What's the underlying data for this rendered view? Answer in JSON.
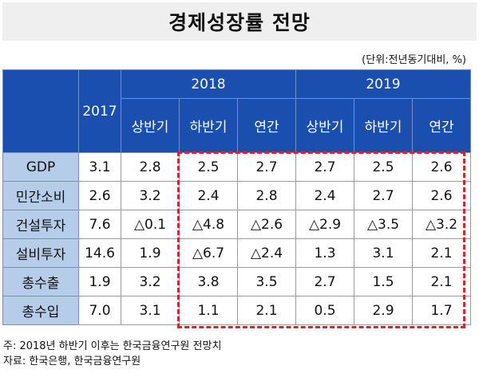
{
  "title": "경제성장률 전망",
  "unit_note": "(단위:전년동기대비, %)",
  "header": {
    "col2017": "2017",
    "year2018": "2018",
    "year2019": "2019",
    "sub": [
      "상반기",
      "하반기",
      "연간",
      "상반기",
      "하반기",
      "연간"
    ]
  },
  "rows": [
    {
      "label": "GDP",
      "values": [
        "3.1",
        "2.8",
        "2.5",
        "2.7",
        "2.7",
        "2.5",
        "2.6"
      ]
    },
    {
      "label": "민간소비",
      "values": [
        "2.6",
        "3.2",
        "2.4",
        "2.8",
        "2.4",
        "2.7",
        "2.6"
      ]
    },
    {
      "label": "건설투자",
      "values": [
        "7.6",
        "△0.1",
        "△4.8",
        "△2.6",
        "△2.9",
        "△3.5",
        "△3.2"
      ]
    },
    {
      "label": "설비투자",
      "values": [
        "14.6",
        "1.9",
        "△6.7",
        "△2.4",
        "1.3",
        "3.1",
        "2.1"
      ]
    },
    {
      "label": "총수출",
      "values": [
        "1.9",
        "3.2",
        "3.8",
        "3.5",
        "2.7",
        "1.5",
        "2.1"
      ]
    },
    {
      "label": "총수입",
      "values": [
        "7.0",
        "3.1",
        "1.1",
        "2.1",
        "0.5",
        "2.9",
        "1.7"
      ]
    }
  ],
  "notes": {
    "note": "주: 2018년 하반기 이후는 한국금융연구원 전망치",
    "source": "자료: 한국은행, 한국금융연구원"
  },
  "colors": {
    "header_bg": "#1a4fb0",
    "row_label_bg": "#b6cdea",
    "highlight_border": "#e0212a"
  }
}
